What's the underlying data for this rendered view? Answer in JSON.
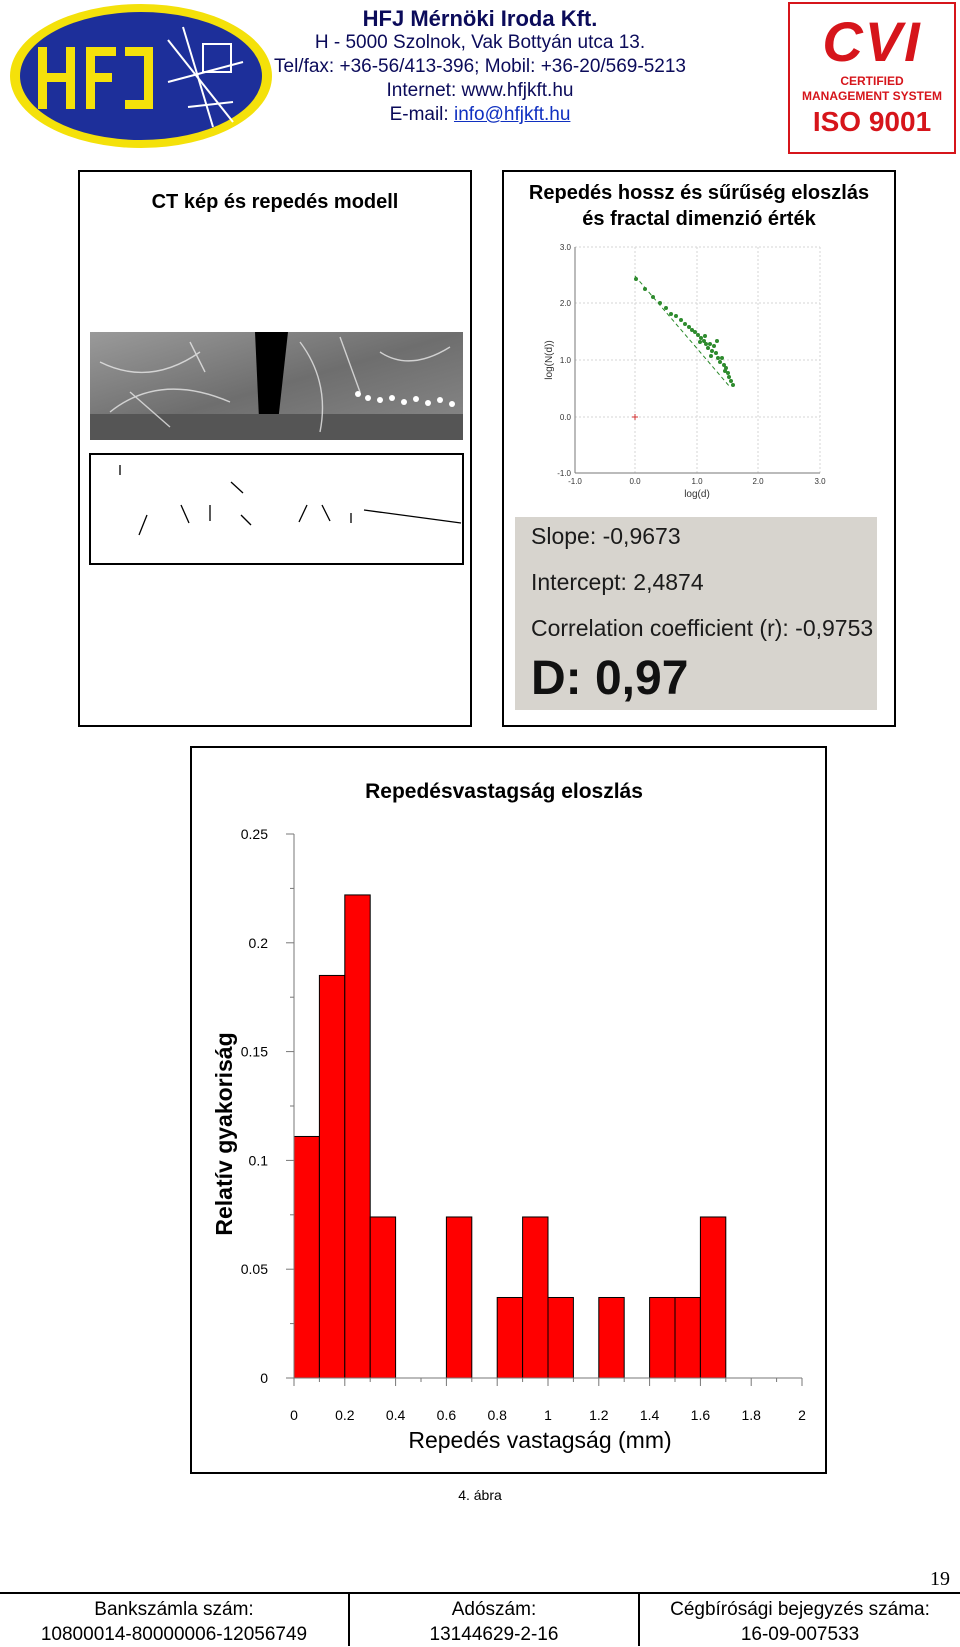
{
  "header": {
    "company": "HFJ Mérnöki Iroda Kft.",
    "address": "H - 5000 Szolnok, Vak Bottyán utca 13.",
    "phone": "Tel/fax: +36-56/413-396; Mobil: +36-20/569-5213",
    "internet": "Internet: www.hfjkft.hu",
    "email_label": "E-mail: ",
    "email": "info@hfjkft.hu",
    "logo_text": "HFJ",
    "cert": {
      "brand": "CVI",
      "line1": "CERTIFIED",
      "line2": "MANAGEMENT SYSTEM",
      "line3": "ISO 9001"
    }
  },
  "panel_left": {
    "title": "CT kép és repedés modell"
  },
  "panel_right": {
    "title_line1": "Repedés hossz és sűrűség eloszlás",
    "title_line2": "és fractal dimenzió érték",
    "plot": {
      "ylabel": "log(N(d))",
      "xlabel": "log(d)",
      "yticks": [
        "3.0",
        "2.0",
        "1.0",
        "0.0",
        "-1.0"
      ],
      "xticks": [
        "-1.0",
        "0.0",
        "1.0",
        "2.0",
        "3.0"
      ]
    },
    "stats": {
      "slope": "Slope: -0,9673",
      "intercept": "Intercept: 2,4874",
      "correlation": "Correlation coefficient (r): -0,9753",
      "dimension": "D: 0,97"
    }
  },
  "chart_data": {
    "type": "bar",
    "title": "Repedésvastagság eloszlás",
    "xlabel": "Repedés vastagság (mm)",
    "ylabel": "Relatív gyakoriság",
    "xlim": [
      0,
      2
    ],
    "ylim": [
      0,
      0.25
    ],
    "xticks": [
      "0",
      "0.2",
      "0.4",
      "0.6",
      "0.8",
      "1",
      "1.2",
      "1.4",
      "1.6",
      "1.8",
      "2"
    ],
    "yticks": [
      "0",
      "0.05",
      "0.1",
      "0.15",
      "0.2",
      "0.25"
    ],
    "bin_width": 0.1,
    "bins": [
      0,
      0.1,
      0.2,
      0.3,
      0.4,
      0.5,
      0.6,
      0.7,
      0.8,
      0.9,
      1.0,
      1.1,
      1.2,
      1.3,
      1.4,
      1.5,
      1.6,
      1.7,
      1.8,
      1.9
    ],
    "values": [
      0.111,
      0.185,
      0.222,
      0.074,
      0,
      0,
      0.074,
      0,
      0.037,
      0.074,
      0.037,
      0,
      0.037,
      0,
      0.037,
      0.037,
      0.074,
      0,
      0,
      0
    ],
    "bar_color": "#ff0000"
  },
  "caption": "4. ábra",
  "page_number": "19",
  "footer": {
    "bank_label": "Bankszámla szám:",
    "bank_value": "10800014-80000006-12056749",
    "tax_label": "Adószám:",
    "tax_value": "13144629-2-16",
    "reg_label": "Cégbírósági bejegyzés száma:",
    "reg_value": "16-09-007533"
  }
}
